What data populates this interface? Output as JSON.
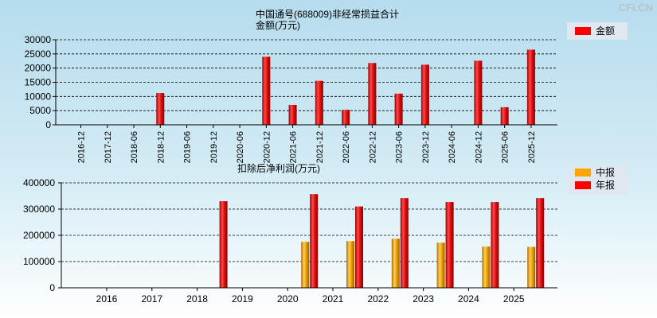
{
  "watermark": "CFi.CN",
  "chart_data": [
    {
      "type": "bar",
      "title": "中国通号(688009)非经常损益合计",
      "ylabel": "金额(万元)",
      "categories": [
        "2016-12",
        "2017-12",
        "2018-06",
        "2018-12",
        "2019-06",
        "2019-12",
        "2020-06",
        "2020-12",
        "2021-06",
        "2021-12",
        "2022-06",
        "2022-12",
        "2023-06",
        "2023-12",
        "2024-06",
        "2024-12",
        "2025-06",
        "2025-12"
      ],
      "series": [
        {
          "name": "金额",
          "color": "#ff0000",
          "values": [
            0,
            0,
            0,
            11200,
            0,
            0,
            0,
            24000,
            7000,
            15500,
            5300,
            21800,
            11000,
            21200,
            0,
            22600,
            6200,
            26500
          ]
        }
      ],
      "yticks": [
        0,
        5000,
        10000,
        15000,
        20000,
        25000,
        30000
      ],
      "ylim": [
        0,
        30000
      ],
      "legend": "top-right",
      "grid": true
    },
    {
      "type": "bar",
      "title": "扣除后净利润(万元)",
      "categories": [
        "2016",
        "2017",
        "2018",
        "2019",
        "2020",
        "2021",
        "2022",
        "2023",
        "2024",
        "2025"
      ],
      "series": [
        {
          "name": "中报",
          "color": "#ffa500",
          "values": [
            0,
            0,
            0,
            0,
            175000,
            178000,
            187000,
            172000,
            157000,
            156000
          ]
        },
        {
          "name": "年报",
          "color": "#ff0000",
          "values": [
            0,
            0,
            330000,
            0,
            357000,
            310000,
            342000,
            327000,
            327000,
            342000
          ]
        }
      ],
      "yticks": [
        0,
        100000,
        200000,
        300000,
        400000
      ],
      "ylim": [
        0,
        400000
      ],
      "legend": "top-right",
      "grid": true
    }
  ]
}
